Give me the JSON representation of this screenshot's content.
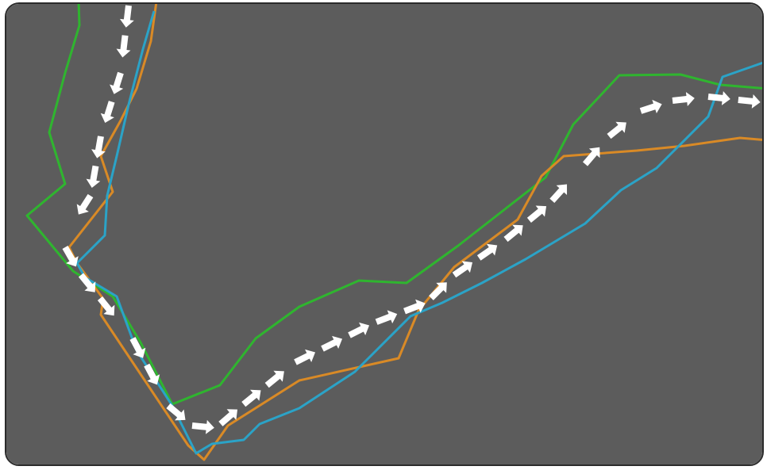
{
  "colors": {
    "panel_background": "#5c5c5c",
    "panel_border": "#2b2b2b",
    "route_green": "#2fb52f",
    "route_orange": "#d98a26",
    "route_blue": "#2ba3c7",
    "main_route": "#ffffff"
  },
  "routes": [
    {
      "id": "green",
      "color_key": "route_green"
    },
    {
      "id": "orange",
      "color_key": "route_orange"
    },
    {
      "id": "blue",
      "color_key": "route_blue"
    }
  ],
  "main_route": {
    "style": "dashed-arrows",
    "color_key": "main_route"
  }
}
